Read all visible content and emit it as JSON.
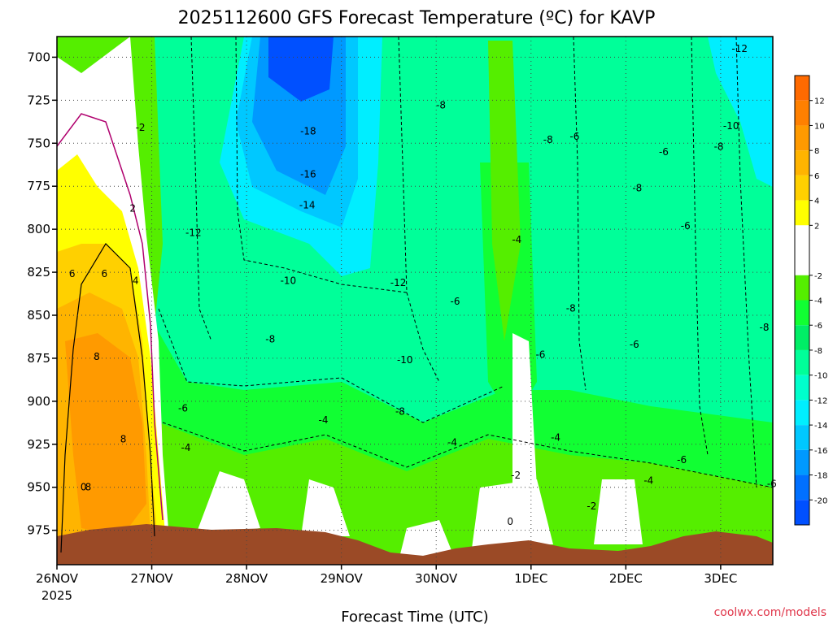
{
  "chart_data": {
    "type": "heatmap",
    "title": "2025112600 GFS Forecast Temperature (ºC) for KAVP",
    "xlabel": "Forecast Time (UTC)",
    "ylabel": "",
    "x_tick_labels": [
      "26NOV",
      "27NOV",
      "28NOV",
      "29NOV",
      "30NOV",
      "1DEC",
      "2DEC",
      "3DEC"
    ],
    "x_year_label": "2025",
    "x_range_days": [
      0,
      7.55
    ],
    "y_ticks": [
      700,
      725,
      750,
      775,
      800,
      825,
      850,
      875,
      900,
      925,
      950,
      975
    ],
    "y_range": [
      688,
      995
    ],
    "y_reversed": true,
    "grid": true,
    "colorbar": {
      "placement": "right",
      "ticks": [
        12,
        10,
        8,
        6,
        4,
        2,
        -2,
        -4,
        -6,
        -8,
        -10,
        -12,
        -14,
        -16,
        -18,
        -20
      ],
      "bins": [
        {
          "lo": 12,
          "hi": 14,
          "color": "#ff6a00"
        },
        {
          "lo": 10,
          "hi": 12,
          "color": "#ff8000"
        },
        {
          "lo": 8,
          "hi": 10,
          "color": "#ff9a00"
        },
        {
          "lo": 6,
          "hi": 8,
          "color": "#ffb400"
        },
        {
          "lo": 4,
          "hi": 6,
          "color": "#ffd000"
        },
        {
          "lo": 2,
          "hi": 4,
          "color": "#ffff00"
        },
        {
          "lo": -2,
          "hi": 2,
          "color": "#ffffff"
        },
        {
          "lo": -4,
          "hi": -2,
          "color": "#55ee00"
        },
        {
          "lo": -6,
          "hi": -4,
          "color": "#11ff33"
        },
        {
          "lo": -8,
          "hi": -6,
          "color": "#00ee66"
        },
        {
          "lo": -10,
          "hi": -8,
          "color": "#00ff99"
        },
        {
          "lo": -12,
          "hi": -10,
          "color": "#00ffcc"
        },
        {
          "lo": -14,
          "hi": -12,
          "color": "#00eeff"
        },
        {
          "lo": -16,
          "hi": -14,
          "color": "#00c8ff"
        },
        {
          "lo": -18,
          "hi": -16,
          "color": "#0099ff"
        },
        {
          "lo": -20,
          "hi": -18,
          "color": "#0070ff"
        },
        {
          "lo": -22,
          "hi": -20,
          "color": "#0050ff"
        }
      ]
    },
    "contour_labels": [
      {
        "t": 0.88,
        "p": 741,
        "v": "-2"
      },
      {
        "t": 0.8,
        "p": 788,
        "v": "2"
      },
      {
        "t": 0.16,
        "p": 826,
        "v": "6"
      },
      {
        "t": 0.5,
        "p": 826,
        "v": "6"
      },
      {
        "t": 0.83,
        "p": 830,
        "v": "4"
      },
      {
        "t": 0.42,
        "p": 874,
        "v": "8"
      },
      {
        "t": 0.7,
        "p": 922,
        "v": "8"
      },
      {
        "t": 0.28,
        "p": 950,
        "v": "0"
      },
      {
        "t": 0.33,
        "p": 950,
        "v": "8"
      },
      {
        "t": 1.44,
        "p": 802,
        "v": "-12"
      },
      {
        "t": 1.33,
        "p": 904,
        "v": "-6"
      },
      {
        "t": 1.36,
        "p": 927,
        "v": "-4"
      },
      {
        "t": 2.25,
        "p": 864,
        "v": "-8"
      },
      {
        "t": 2.65,
        "p": 743,
        "v": "-18"
      },
      {
        "t": 2.65,
        "p": 768,
        "v": "-16"
      },
      {
        "t": 2.64,
        "p": 786,
        "v": "-14"
      },
      {
        "t": 2.44,
        "p": 830,
        "v": "-10"
      },
      {
        "t": 2.81,
        "p": 911,
        "v": "-4"
      },
      {
        "t": 3.6,
        "p": 831,
        "v": "-12"
      },
      {
        "t": 3.67,
        "p": 876,
        "v": "-10"
      },
      {
        "t": 3.62,
        "p": 906,
        "v": "-8"
      },
      {
        "t": 4.05,
        "p": 728,
        "v": "-8"
      },
      {
        "t": 4.2,
        "p": 842,
        "v": "-6"
      },
      {
        "t": 4.17,
        "p": 924,
        "v": "-4"
      },
      {
        "t": 4.85,
        "p": 806,
        "v": "-4"
      },
      {
        "t": 4.84,
        "p": 943,
        "v": "-2"
      },
      {
        "t": 4.78,
        "p": 970,
        "v": "0"
      },
      {
        "t": 5.1,
        "p": 873,
        "v": "-6"
      },
      {
        "t": 5.18,
        "p": 748,
        "v": "-8"
      },
      {
        "t": 5.46,
        "p": 746,
        "v": "-6"
      },
      {
        "t": 5.42,
        "p": 846,
        "v": "-8"
      },
      {
        "t": 5.26,
        "p": 921,
        "v": "-4"
      },
      {
        "t": 5.64,
        "p": 961,
        "v": "-2"
      },
      {
        "t": 6.12,
        "p": 776,
        "v": "-8"
      },
      {
        "t": 6.4,
        "p": 755,
        "v": "-6"
      },
      {
        "t": 6.63,
        "p": 798,
        "v": "-6"
      },
      {
        "t": 6.09,
        "p": 867,
        "v": "-6"
      },
      {
        "t": 6.24,
        "p": 946,
        "v": "-4"
      },
      {
        "t": 6.59,
        "p": 934,
        "v": "-6"
      },
      {
        "t": 6.98,
        "p": 752,
        "v": "-8"
      },
      {
        "t": 7.2,
        "p": 695,
        "v": "-12"
      },
      {
        "t": 7.11,
        "p": 740,
        "v": "-10"
      },
      {
        "t": 7.46,
        "p": 857,
        "v": "-8"
      },
      {
        "t": 7.54,
        "p": 948,
        "v": "-6"
      }
    ],
    "terrain_color": "#9b4a26"
  },
  "credit": "coolwx.com/models"
}
